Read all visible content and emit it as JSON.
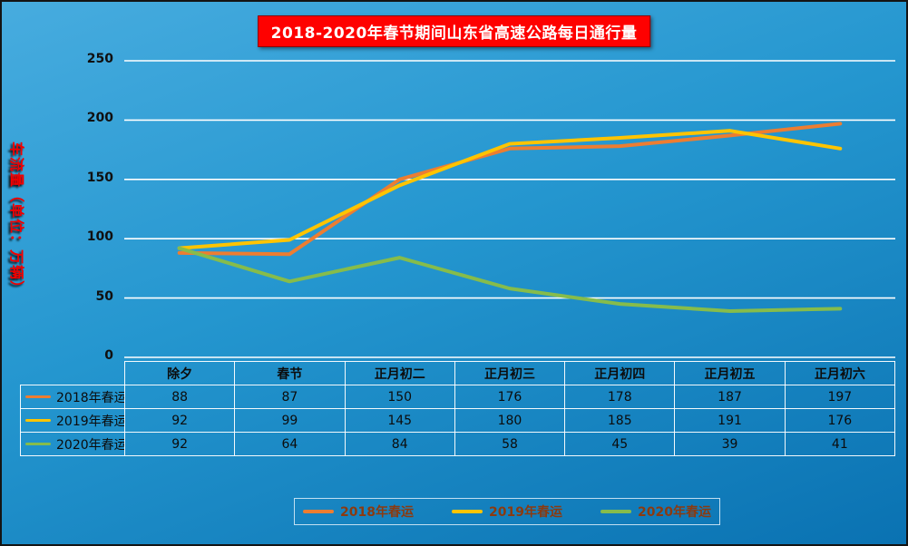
{
  "title": "2018-2020年春节期间山东省高速公路每日通行量",
  "chart_data": {
    "type": "line",
    "title": "2018-2020年春节期间山东省高速公路每日通行量",
    "xlabel": "",
    "ylabel": "车流量（单位：万辆）",
    "categories": [
      "除夕",
      "春节",
      "正月初二",
      "正月初三",
      "正月初四",
      "正月初五",
      "正月初六"
    ],
    "series": [
      {
        "name": "2018年春运",
        "color": "#ED7D31",
        "values": [
          88,
          87,
          150,
          176,
          178,
          187,
          197
        ]
      },
      {
        "name": "2019年春运",
        "color": "#FFC400",
        "values": [
          92,
          99,
          145,
          180,
          185,
          191,
          176
        ]
      },
      {
        "name": "2020年春运",
        "color": "#86BC4B",
        "values": [
          92,
          64,
          84,
          58,
          45,
          39,
          41
        ]
      }
    ],
    "ylim": [
      0,
      250
    ],
    "yticks": [
      0,
      50,
      100,
      150,
      200,
      250
    ],
    "grid": "horizontal-white",
    "legend_position": "bottom",
    "data_table_shown": true
  },
  "legend": {
    "items": [
      "2018年春运",
      "2019年春运",
      "2020年春运"
    ]
  },
  "colors": {
    "background_top": "#47ACDF",
    "background_bottom": "#0A72B2",
    "title_background": "#FE0100",
    "title_text": "#FFFFFF",
    "axis_title_text": "#F00000",
    "gridline": "#FFFFFF",
    "table_text": "#0C0C0C",
    "legend_text": "#8B3A10"
  }
}
